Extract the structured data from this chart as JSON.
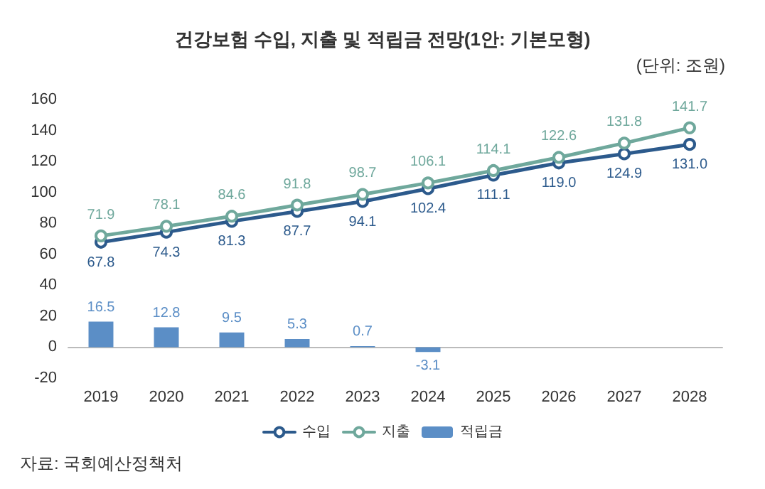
{
  "chart_data": {
    "type": "line",
    "title": "건강보험 수입, 지출 및 적립금 전망(1안: 기본모형)",
    "annotations": [
      "(단위: 조원)",
      "자료: 국회예산정책처"
    ],
    "categories": [
      "2019",
      "2020",
      "2021",
      "2022",
      "2023",
      "2024",
      "2025",
      "2026",
      "2027",
      "2028"
    ],
    "series": [
      {
        "name": "수입",
        "color": "#2c5a8c",
        "values": [
          67.8,
          74.3,
          81.3,
          87.7,
          94.1,
          102.4,
          111.1,
          119.0,
          124.9,
          131.0
        ],
        "value_labels": [
          "67.8",
          "74.3",
          "81.3",
          "87.7",
          "94.1",
          "102.4",
          "111.1",
          "119.0",
          "124.9",
          "131.0"
        ]
      },
      {
        "name": "지출",
        "color": "#6fa89c",
        "values": [
          71.9,
          78.1,
          84.6,
          91.8,
          98.7,
          106.1,
          114.1,
          122.6,
          131.8,
          141.7
        ],
        "value_labels": [
          "71.9",
          "78.1",
          "84.6",
          "91.8",
          "98.7",
          "106.1",
          "114.1",
          "122.6",
          "131.8",
          "141.7"
        ]
      },
      {
        "name": "적립금",
        "type": "bar",
        "color": "#5b8ec6",
        "values": [
          16.5,
          12.8,
          9.5,
          5.3,
          0.7,
          -3.1,
          null,
          null,
          null,
          null
        ],
        "value_labels": [
          "16.5",
          "12.8",
          "9.5",
          "5.3",
          "0.7",
          "-3.1",
          null,
          null,
          null,
          null
        ]
      }
    ],
    "ylim": [
      -20,
      160
    ],
    "yticks": [
      -20,
      0,
      20,
      40,
      60,
      80,
      100,
      120,
      140,
      160
    ],
    "legend": "bottom",
    "marker": "circle",
    "line_style": "solid"
  }
}
